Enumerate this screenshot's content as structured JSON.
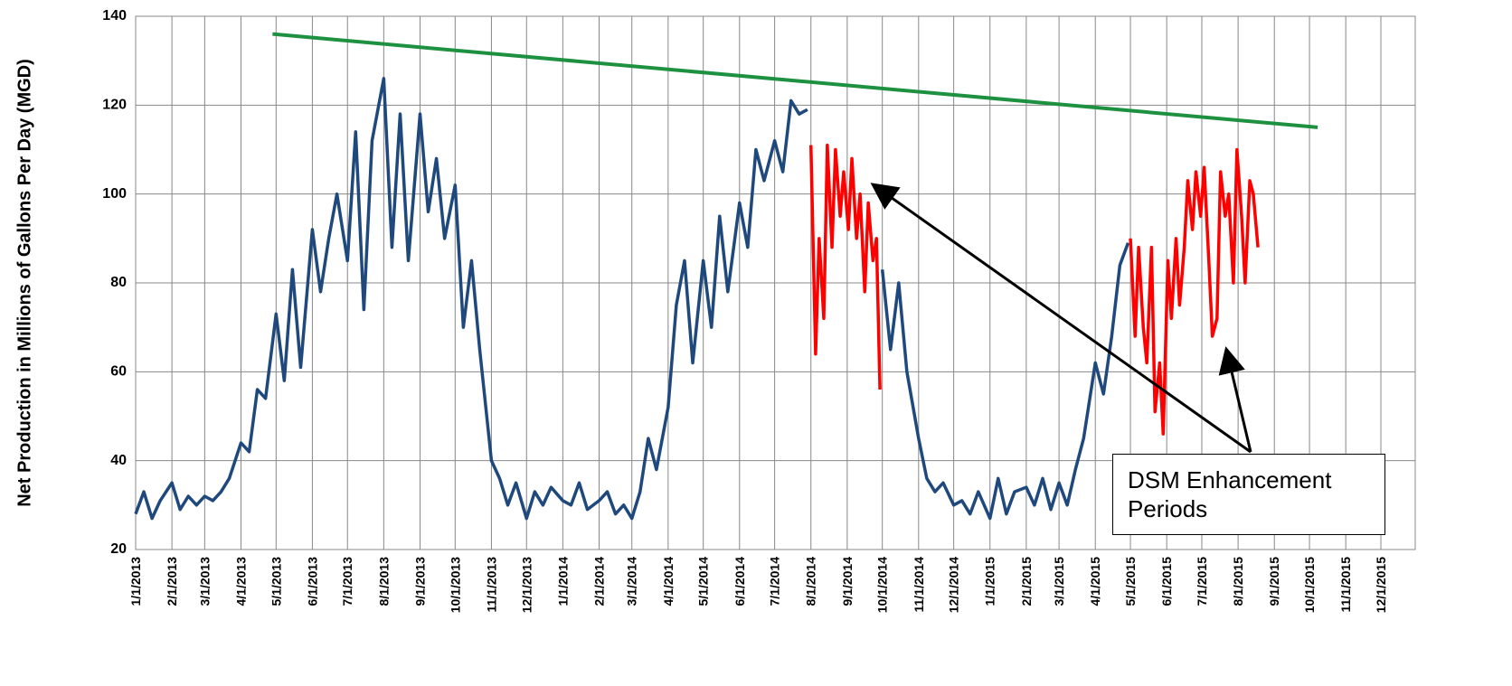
{
  "chart_data": {
    "type": "line",
    "y_label": "Net Production in Millions of Gallons Per Day (MGD)",
    "annotation": "DSM Enhancement Periods",
    "xlim": [
      "1/1/2013",
      "12/1/2015"
    ],
    "xticks": [
      "1/1/2013",
      "2/1/2013",
      "3/1/2013",
      "4/1/2013",
      "5/1/2013",
      "6/1/2013",
      "7/1/2013",
      "8/1/2013",
      "9/1/2013",
      "10/1/2013",
      "11/1/2013",
      "12/1/2013",
      "1/1/2014",
      "2/1/2014",
      "3/1/2014",
      "4/1/2014",
      "5/1/2014",
      "6/1/2014",
      "7/1/2014",
      "8/1/2014",
      "9/1/2014",
      "10/1/2014",
      "11/1/2014",
      "12/1/2014",
      "1/1/2015",
      "2/1/2015",
      "3/1/2015",
      "4/1/2015",
      "5/1/2015",
      "6/1/2015",
      "7/1/2015",
      "8/1/2015",
      "9/1/2015",
      "10/1/2015",
      "11/1/2015",
      "12/1/2015"
    ],
    "ylim": [
      20,
      140
    ],
    "yticks": [
      20,
      40,
      60,
      80,
      100,
      120,
      140
    ],
    "grid": true,
    "series": [
      {
        "color": "#1f497d",
        "x": [
          "1/1/2013",
          "1/8/2013",
          "1/15/2013",
          "1/22/2013",
          "2/1/2013",
          "2/8/2013",
          "2/15/2013",
          "2/22/2013",
          "3/1/2013",
          "3/8/2013",
          "3/15/2013",
          "3/22/2013",
          "4/1/2013",
          "4/8/2013",
          "4/15/2013",
          "4/22/2013",
          "5/1/2013",
          "5/8/2013",
          "5/15/2013",
          "5/22/2013",
          "6/1/2013",
          "6/8/2013",
          "6/15/2013",
          "6/22/2013",
          "7/1/2013",
          "7/8/2013",
          "7/15/2013",
          "7/22/2013",
          "8/1/2013",
          "8/8/2013",
          "8/15/2013",
          "8/22/2013",
          "9/1/2013",
          "9/8/2013",
          "9/15/2013",
          "9/22/2013",
          "10/1/2013",
          "10/8/2013",
          "10/15/2013",
          "10/22/2013",
          "11/1/2013",
          "11/8/2013",
          "11/15/2013",
          "11/22/2013",
          "12/1/2013",
          "12/8/2013",
          "12/15/2013",
          "12/22/2013",
          "1/1/2014",
          "1/8/2014",
          "1/15/2014",
          "1/22/2014",
          "2/1/2014",
          "2/8/2014",
          "2/15/2014",
          "2/22/2014",
          "3/1/2014",
          "3/8/2014",
          "3/15/2014",
          "3/22/2014",
          "4/1/2014",
          "4/8/2014",
          "4/15/2014",
          "4/22/2014",
          "5/1/2014",
          "5/8/2014",
          "5/15/2014",
          "5/22/2014",
          "6/1/2014",
          "6/8/2014",
          "6/15/2014",
          "6/22/2014",
          "7/1/2014",
          "7/8/2014",
          "7/15/2014",
          "7/22/2014",
          "7/29/2014"
        ],
        "values": [
          28,
          33,
          27,
          31,
          35,
          29,
          32,
          30,
          32,
          31,
          33,
          36,
          44,
          42,
          56,
          54,
          73,
          58,
          83,
          61,
          92,
          78,
          90,
          100,
          85,
          114,
          74,
          112,
          126,
          88,
          118,
          85,
          118,
          96,
          108,
          90,
          102,
          70,
          85,
          65,
          40,
          36,
          30,
          35,
          27,
          33,
          30,
          34,
          31,
          30,
          35,
          29,
          31,
          33,
          28,
          30,
          27,
          33,
          45,
          38,
          52,
          75,
          85,
          62,
          85,
          70,
          95,
          78,
          98,
          88,
          110,
          103,
          112,
          105,
          121,
          118,
          119
        ]
      },
      {
        "color": "#ff0000",
        "x": [
          "8/1/2014",
          "8/5/2014",
          "8/8/2014",
          "8/12/2014",
          "8/15/2014",
          "8/19/2014",
          "8/22/2014",
          "8/26/2014",
          "8/29/2014",
          "9/2/2014",
          "9/5/2014",
          "9/9/2014",
          "9/12/2014",
          "9/16/2014",
          "9/19/2014",
          "9/23/2014",
          "9/26/2014",
          "9/29/2014"
        ],
        "values": [
          111,
          64,
          90,
          72,
          111,
          88,
          110,
          95,
          105,
          92,
          108,
          90,
          100,
          78,
          98,
          85,
          90,
          56
        ]
      },
      {
        "color": "#1f497d",
        "x": [
          "10/1/2014",
          "10/8/2014",
          "10/15/2014",
          "10/22/2014",
          "11/1/2014",
          "11/8/2014",
          "11/15/2014",
          "11/22/2014",
          "12/1/2014",
          "12/8/2014",
          "12/15/2014",
          "12/22/2014",
          "1/1/2015",
          "1/8/2015",
          "1/15/2015",
          "1/22/2015",
          "2/1/2015",
          "2/8/2015",
          "2/15/2015",
          "2/22/2015",
          "3/1/2015",
          "3/8/2015",
          "3/15/2015",
          "3/22/2015",
          "4/1/2015",
          "4/8/2015",
          "4/15/2015",
          "4/22/2015",
          "4/29/2015"
        ],
        "values": [
          83,
          65,
          80,
          60,
          45,
          36,
          33,
          35,
          30,
          31,
          28,
          33,
          27,
          36,
          28,
          33,
          34,
          30,
          36,
          29,
          35,
          30,
          38,
          45,
          62,
          55,
          68,
          84,
          89
        ]
      },
      {
        "color": "#ff0000",
        "x": [
          "5/1/2015",
          "5/5/2015",
          "5/8/2015",
          "5/12/2015",
          "5/15/2015",
          "5/19/2015",
          "5/22/2015",
          "5/26/2015",
          "5/29/2015",
          "6/2/2015",
          "6/5/2015",
          "6/9/2015",
          "6/12/2015",
          "6/16/2015",
          "6/19/2015",
          "6/23/2015",
          "6/26/2015",
          "6/30/2015",
          "7/3/2015",
          "7/7/2015",
          "7/10/2015",
          "7/14/2015",
          "7/17/2015",
          "7/21/2015",
          "7/24/2015",
          "7/28/2015",
          "7/31/2015",
          "8/4/2015",
          "8/7/2015",
          "8/11/2015",
          "8/14/2015",
          "8/18/2015"
        ],
        "values": [
          90,
          68,
          88,
          70,
          62,
          88,
          51,
          62,
          46,
          85,
          72,
          90,
          75,
          88,
          103,
          92,
          105,
          95,
          106,
          85,
          68,
          72,
          105,
          95,
          100,
          80,
          110,
          95,
          80,
          103,
          100,
          88
        ]
      },
      {
        "color": "#1e9140",
        "x": [
          "4/28/2013",
          "10/8/2015"
        ],
        "values": [
          136,
          115
        ]
      }
    ]
  }
}
